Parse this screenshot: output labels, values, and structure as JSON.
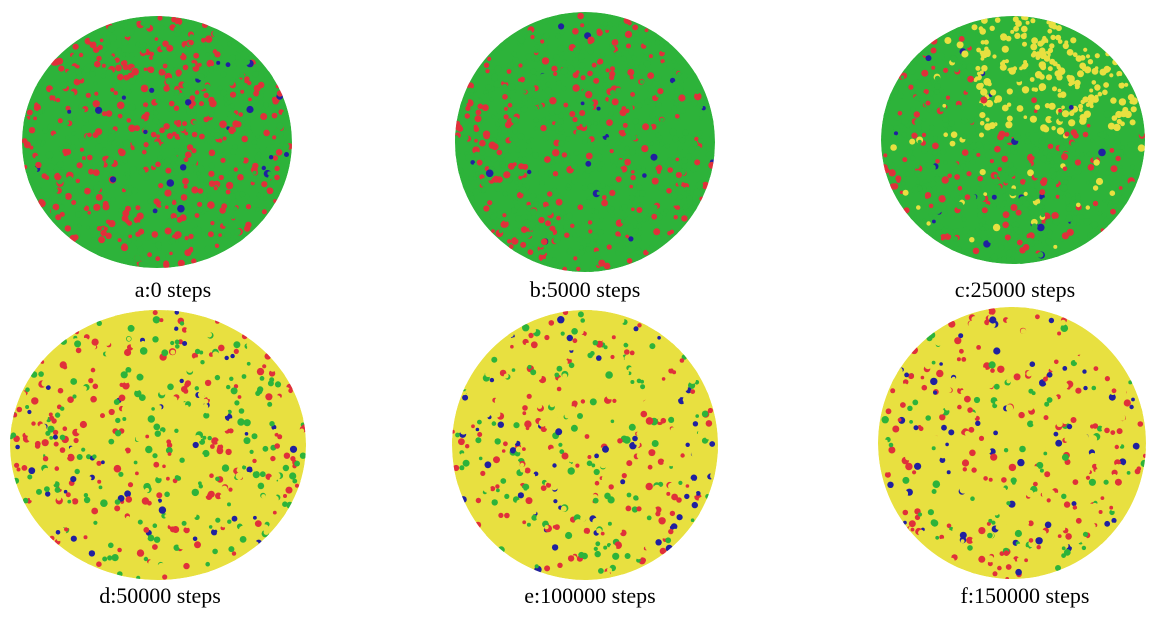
{
  "panels": [
    {
      "caption": "a:0 steps"
    },
    {
      "caption": "b:5000 steps"
    },
    {
      "caption": "c:25000 steps"
    },
    {
      "caption": "d:50000 steps"
    },
    {
      "caption": "e:100000 steps"
    },
    {
      "caption": "f:150000 steps"
    }
  ]
}
